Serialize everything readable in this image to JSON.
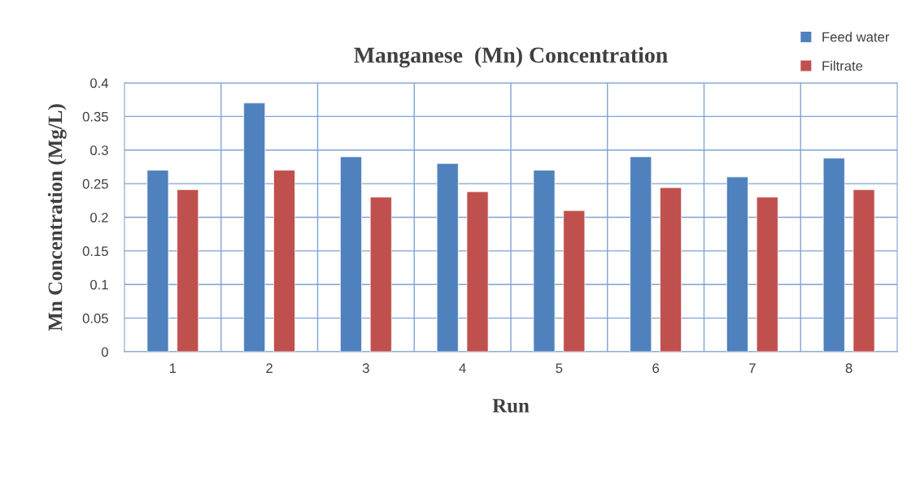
{
  "chart_data": {
    "type": "bar",
    "title": "Manganese  (Mn) Concentration",
    "xlabel": "Run",
    "ylabel": "Mn Concentration (Mg/L)",
    "categories": [
      "1",
      "2",
      "3",
      "4",
      "5",
      "6",
      "7",
      "8"
    ],
    "series": [
      {
        "name": "Feed water",
        "color": "#4f81bd",
        "values": [
          0.27,
          0.37,
          0.29,
          0.28,
          0.27,
          0.29,
          0.26,
          0.288
        ]
      },
      {
        "name": "Filtrate",
        "color": "#c0504d",
        "values": [
          0.241,
          0.27,
          0.23,
          0.238,
          0.21,
          0.244,
          0.23,
          0.241
        ]
      }
    ],
    "ylim": [
      0,
      0.4
    ],
    "yticks": [
      0,
      0.05,
      0.1,
      0.15,
      0.2,
      0.25,
      0.3,
      0.35,
      0.4
    ],
    "grid": true,
    "legend": "top right"
  }
}
